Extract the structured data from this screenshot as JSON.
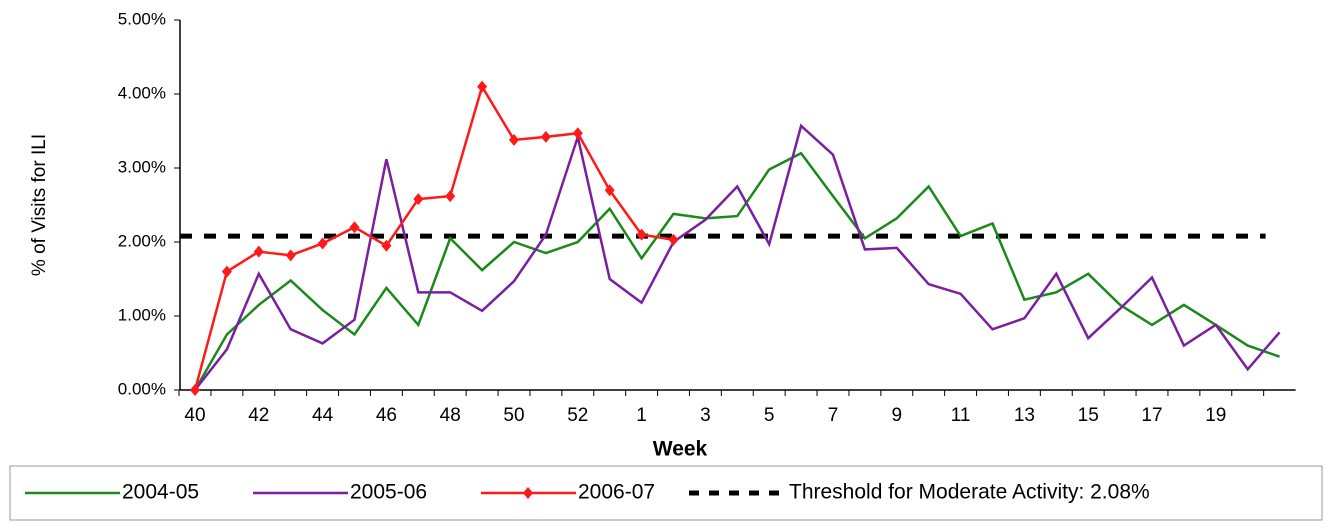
{
  "chart_data": {
    "type": "line",
    "y_label": "% of Visits for ILI",
    "x_label": "Week",
    "categories": [
      "40",
      null,
      "42",
      null,
      "44",
      null,
      "46",
      null,
      "48",
      null,
      "50",
      null,
      "52",
      null,
      "1",
      null,
      "3",
      null,
      "5",
      null,
      "7",
      null,
      "9",
      null,
      "11",
      null,
      "13",
      null,
      "15",
      null,
      "17",
      null,
      "19",
      null,
      null
    ],
    "series": [
      {
        "name": "2004-05",
        "color": "#1a8a1a",
        "marker": false,
        "values": [
          0,
          0.75,
          1.15,
          1.48,
          1.08,
          0.75,
          1.38,
          0.88,
          2.05,
          1.62,
          2.0,
          1.85,
          2.0,
          2.45,
          1.78,
          2.38,
          2.32,
          2.35,
          2.98,
          3.2,
          2.62,
          2.05,
          2.32,
          2.75,
          2.08,
          2.25,
          1.22,
          1.32,
          1.57,
          1.15,
          0.88,
          1.15,
          0.88,
          0.6,
          0.45
        ]
      },
      {
        "name": "2005-06",
        "color": "#7a1fa0",
        "marker": false,
        "values": [
          0,
          0.55,
          1.57,
          0.82,
          0.63,
          0.95,
          3.12,
          1.32,
          1.32,
          1.07,
          1.47,
          2.1,
          3.42,
          1.5,
          1.18,
          2.0,
          2.3,
          2.75,
          1.97,
          3.57,
          3.18,
          1.9,
          1.92,
          1.43,
          1.3,
          0.82,
          0.97,
          1.57,
          0.7,
          1.1,
          1.52,
          0.6,
          0.88,
          0.28,
          0.78
        ]
      },
      {
        "name": "2006-07",
        "color": "#ff1a1a",
        "marker": true,
        "values": [
          0,
          1.6,
          1.87,
          1.82,
          1.98,
          2.2,
          1.95,
          2.58,
          2.62,
          4.1,
          3.38,
          3.42,
          3.47,
          2.7,
          2.1,
          2.03,
          null,
          null,
          null,
          null,
          null,
          null,
          null,
          null,
          null,
          null,
          null,
          null,
          null,
          null,
          null,
          null,
          null,
          null,
          null
        ]
      }
    ],
    "threshold": {
      "name": "Threshold for Moderate Activity: 2.08%",
      "value": 2.08,
      "color": "#000000"
    },
    "ylim": [
      0,
      5
    ],
    "yticks": [
      {
        "value": 0,
        "label": "0.00%"
      },
      {
        "value": 1,
        "label": "1.00%"
      },
      {
        "value": 2,
        "label": "2.00%"
      },
      {
        "value": 3,
        "label": "3.00%"
      },
      {
        "value": 4,
        "label": "4.00%"
      },
      {
        "value": 5,
        "label": "5.00%"
      }
    ],
    "grid": false
  }
}
